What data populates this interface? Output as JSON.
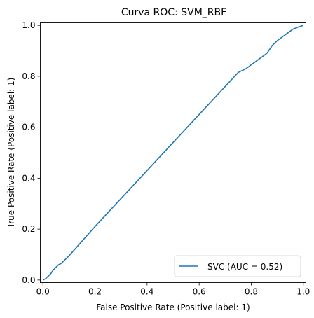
{
  "chart_data": {
    "type": "line",
    "title": "Curva ROC: SVM_RBF",
    "xlabel": "False Positive Rate (Positive label: 1)",
    "ylabel": "True Positive Rate (Positive label: 1)",
    "xlim": [
      -0.01,
      1.01
    ],
    "ylim": [
      -0.01,
      1.01
    ],
    "xticks": [
      0.0,
      0.2,
      0.4,
      0.6,
      0.8,
      1.0
    ],
    "xtick_labels": [
      "0.0",
      "0.2",
      "0.4",
      "0.6",
      "0.8",
      "1.0"
    ],
    "yticks": [
      0.0,
      0.2,
      0.4,
      0.6,
      0.8,
      1.0
    ],
    "ytick_labels": [
      "0.0",
      "0.2",
      "0.4",
      "0.6",
      "0.8",
      "1.0"
    ],
    "grid": false,
    "legend_position": "lower-right",
    "series": [
      {
        "name": "SVC (AUC = 0.52)",
        "color": "#1f77b4",
        "x": [
          0.0,
          0.01,
          0.02,
          0.03,
          0.04,
          0.05,
          0.06,
          0.07,
          0.08,
          0.1,
          0.2,
          0.3,
          0.4,
          0.5,
          0.6,
          0.7,
          0.75,
          0.78,
          0.8,
          0.82,
          0.84,
          0.86,
          0.88,
          0.9,
          0.92,
          0.94,
          0.96,
          0.98,
          1.0
        ],
        "y": [
          0.0,
          0.005,
          0.015,
          0.025,
          0.04,
          0.05,
          0.06,
          0.065,
          0.075,
          0.095,
          0.21,
          0.32,
          0.43,
          0.54,
          0.65,
          0.76,
          0.815,
          0.83,
          0.845,
          0.86,
          0.875,
          0.89,
          0.92,
          0.94,
          0.955,
          0.97,
          0.985,
          0.993,
          1.0
        ]
      }
    ]
  }
}
